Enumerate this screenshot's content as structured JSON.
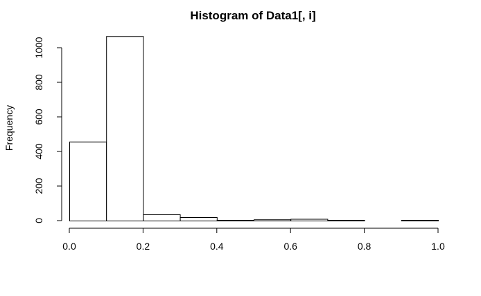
{
  "chart_data": {
    "type": "bar",
    "title": "Histogram of Data1[, i]",
    "xlabel": "",
    "ylabel": "Frequency",
    "bins": [
      {
        "start": 0.0,
        "end": 0.1,
        "count": 457
      },
      {
        "start": 0.1,
        "end": 0.2,
        "count": 1067
      },
      {
        "start": 0.2,
        "end": 0.3,
        "count": 36
      },
      {
        "start": 0.3,
        "end": 0.4,
        "count": 20
      },
      {
        "start": 0.4,
        "end": 0.5,
        "count": 4
      },
      {
        "start": 0.5,
        "end": 0.6,
        "count": 7
      },
      {
        "start": 0.6,
        "end": 0.7,
        "count": 10
      },
      {
        "start": 0.7,
        "end": 0.8,
        "count": 4
      },
      {
        "start": 0.8,
        "end": 0.9,
        "count": 0
      },
      {
        "start": 0.9,
        "end": 1.0,
        "count": 4
      }
    ],
    "xlim": [
      0,
      1
    ],
    "ylim": [
      0,
      1000
    ],
    "xticks": [
      "0.0",
      "0.2",
      "0.4",
      "0.6",
      "0.8",
      "1.0"
    ],
    "yticks": [
      "0",
      "200",
      "400",
      "600",
      "800",
      "1000"
    ],
    "grid": false
  }
}
